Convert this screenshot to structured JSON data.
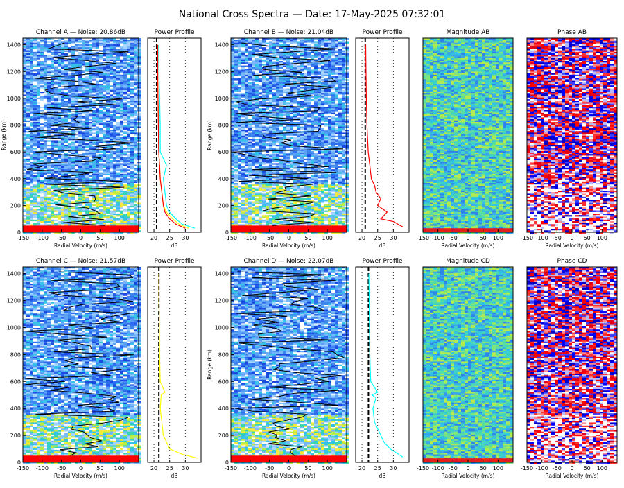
{
  "page": {
    "title": "National Cross Spectra — Date: 17-May-2025 07:32:01"
  },
  "labels": {
    "range_axis": "Range (km)",
    "velocity_axis": "Radial Velocity (m/s)",
    "db_axis": "dB",
    "power_profile_title": "Power Profile"
  },
  "colors": {
    "spectrum_background": "#4a86e8",
    "ground_clutter": "#ff0000",
    "channel_a_profile": "#ffff00",
    "channel_b_profile": "#ff0000",
    "channel_c_profile": "#ffff00",
    "channel_d_profile": "#00ffff",
    "phase_positive": "#ff0000",
    "phase_negative": "#0000ff",
    "noise_level_line": "#000000"
  },
  "chart_data": [
    {
      "id": "channel_a_spectrum",
      "type": "heatmap",
      "title": "Channel A — Noise: 20.86dB",
      "xlabel": "Radial Velocity (m/s)",
      "ylabel": "Range (km)",
      "xlim": [
        -150,
        150
      ],
      "ylim": [
        0,
        1450
      ],
      "xticks": [
        -150,
        -100,
        -50,
        0,
        50,
        100
      ],
      "yticks": [
        0,
        200,
        400,
        600,
        800,
        1000,
        1200,
        1400
      ],
      "colormap": "blue-cyan-yellow-red",
      "ground_clutter_below_km": 50
    },
    {
      "id": "channel_a_power",
      "type": "line",
      "title": "Power Profile",
      "xlabel": "dB",
      "xlim": [
        18,
        35
      ],
      "ylim": [
        0,
        1450
      ],
      "xticks": [
        20,
        25,
        30
      ],
      "noise_level_db": 20.86,
      "series": [
        {
          "color": "#ffff00",
          "range_km": [
            30,
            60,
            100,
            150,
            200,
            300,
            400,
            500,
            600,
            800,
            1000,
            1200,
            1400
          ],
          "db": [
            31,
            28,
            26,
            24,
            23,
            22.5,
            22,
            21.8,
            21.5,
            21.5,
            21.3,
            21.2,
            21.2
          ]
        },
        {
          "color": "#ff0000",
          "range_km": [
            30,
            60,
            100,
            150,
            200,
            300,
            400,
            500,
            600,
            800,
            1000,
            1200,
            1400
          ],
          "db": [
            30,
            27,
            25,
            23.5,
            23,
            22.5,
            22,
            21.8,
            21.5,
            21.4,
            21.3,
            21.2,
            21.2
          ]
        },
        {
          "color": "#00ffff",
          "range_km": [
            30,
            60,
            100,
            150,
            200,
            300,
            400,
            500,
            600,
            800,
            1000,
            1200,
            1400
          ],
          "db": [
            33,
            29,
            27,
            25,
            24,
            23.5,
            23,
            24,
            22,
            22,
            21.8,
            21.6,
            21.5
          ]
        }
      ]
    },
    {
      "id": "channel_b_spectrum",
      "type": "heatmap",
      "title": "Channel B — Noise: 21.04dB",
      "xlabel": "Radial Velocity (m/s)",
      "ylabel": "Range (km)",
      "xlim": [
        -150,
        150
      ],
      "ylim": [
        0,
        1450
      ],
      "xticks": [
        -150,
        -100,
        -50,
        0,
        50,
        100
      ],
      "yticks": [
        0,
        200,
        400,
        600,
        800,
        1000,
        1200,
        1400
      ],
      "colormap": "blue-cyan-yellow-red",
      "ground_clutter_below_km": 50
    },
    {
      "id": "channel_b_power",
      "type": "line",
      "title": "Power Profile",
      "xlabel": "dB",
      "xlim": [
        18,
        35
      ],
      "ylim": [
        0,
        1450
      ],
      "xticks": [
        20,
        25,
        30
      ],
      "noise_level_db": 21.04,
      "series": [
        {
          "color": "#ff0000",
          "range_km": [
            40,
            80,
            100,
            150,
            200,
            250,
            300,
            350,
            400,
            500,
            600,
            800,
            1000,
            1200,
            1400
          ],
          "db": [
            33,
            30,
            26,
            28,
            25,
            26,
            24.5,
            24,
            23,
            22.5,
            22,
            21.6,
            21.4,
            21.3,
            21.2
          ]
        }
      ]
    },
    {
      "id": "magnitude_ab",
      "type": "heatmap",
      "title": "Magnitude AB",
      "xlabel": "Radial Velocity (m/s)",
      "xlim": [
        -150,
        150
      ],
      "ylim": [
        0,
        1450
      ],
      "xticks": [
        -150,
        -100,
        -50,
        0,
        50,
        100
      ],
      "colormap": "blue-cyan-yellow-red"
    },
    {
      "id": "phase_ab",
      "type": "heatmap",
      "title": "Phase AB",
      "xlabel": "Radial Velocity (m/s)",
      "xlim": [
        -150,
        150
      ],
      "ylim": [
        0,
        1450
      ],
      "xticks": [
        -150,
        -100,
        -50,
        0,
        50,
        100
      ],
      "colormap": "red-white-blue"
    },
    {
      "id": "channel_c_spectrum",
      "type": "heatmap",
      "title": "Channel C — Noise: 21.57dB",
      "xlabel": "Radial Velocity (m/s)",
      "xlim": [
        -150,
        150
      ],
      "ylim": [
        0,
        1450
      ],
      "xticks": [
        -150,
        -100,
        -50,
        0,
        50,
        100
      ],
      "yticks": [
        0,
        200,
        400,
        600,
        800,
        1000,
        1200,
        1400
      ],
      "colormap": "blue-cyan-yellow-red",
      "ground_clutter_below_km": 50
    },
    {
      "id": "channel_c_power",
      "type": "line",
      "title": "Power Profile",
      "xlabel": "dB",
      "xlim": [
        18,
        35
      ],
      "ylim": [
        0,
        1450
      ],
      "xticks": [
        20,
        25,
        30
      ],
      "noise_level_db": 21.57,
      "series": [
        {
          "color": "#ffff00",
          "range_km": [
            30,
            60,
            100,
            150,
            200,
            300,
            400,
            500,
            520,
            600,
            800,
            1000,
            1200,
            1400
          ],
          "db": [
            34,
            29,
            25,
            24,
            23,
            22.5,
            22,
            22.3,
            23.5,
            22,
            21.8,
            21.7,
            21.6,
            21.6
          ]
        }
      ]
    },
    {
      "id": "channel_d_spectrum",
      "type": "heatmap",
      "title": "Channel D — Noise: 22.07dB",
      "xlabel": "Radial Velocity (m/s)",
      "ylabel": "Range (km)",
      "xlim": [
        -150,
        150
      ],
      "ylim": [
        0,
        1450
      ],
      "xticks": [
        -150,
        -100,
        -50,
        0,
        50,
        100
      ],
      "yticks": [
        0,
        200,
        400,
        600,
        800,
        1000,
        1200,
        1400
      ],
      "colormap": "blue-cyan-yellow-red",
      "ground_clutter_below_km": 50
    },
    {
      "id": "channel_d_power",
      "type": "line",
      "title": "Power Profile",
      "xlabel": "dB",
      "xlim": [
        18,
        35
      ],
      "ylim": [
        0,
        1450
      ],
      "xticks": [
        20,
        25,
        30
      ],
      "noise_level_db": 22.07,
      "series": [
        {
          "color": "#00ffff",
          "range_km": [
            40,
            70,
            100,
            150,
            200,
            250,
            300,
            400,
            480,
            500,
            520,
            600,
            800,
            1000,
            1200,
            1400
          ],
          "db": [
            33,
            31,
            29,
            27,
            26,
            25,
            24,
            23.5,
            24.5,
            23.2,
            25,
            22.8,
            22.5,
            22.4,
            22.3,
            22.2
          ]
        }
      ]
    },
    {
      "id": "magnitude_cd",
      "type": "heatmap",
      "title": "Magnitude CD",
      "xlabel": "Radial Velocity (m/s)",
      "xlim": [
        -150,
        150
      ],
      "ylim": [
        0,
        1450
      ],
      "xticks": [
        -150,
        -100,
        -50,
        0,
        50,
        100
      ],
      "colormap": "blue-cyan-yellow-red"
    },
    {
      "id": "phase_cd",
      "type": "heatmap",
      "title": "Phase CD",
      "xlabel": "Radial Velocity (m/s)",
      "xlim": [
        -150,
        150
      ],
      "ylim": [
        0,
        1450
      ],
      "xticks": [
        -150,
        -100,
        -50,
        0,
        50,
        100
      ],
      "colormap": "red-white-blue"
    }
  ]
}
